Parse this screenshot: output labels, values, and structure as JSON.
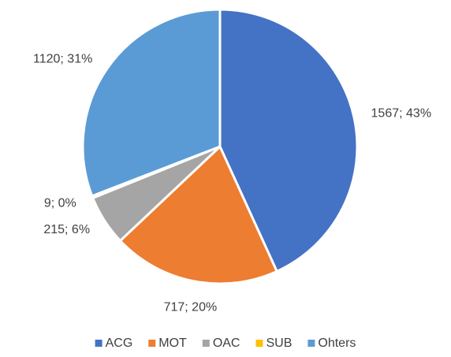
{
  "chart_data": {
    "type": "pie",
    "categories": [
      "ACG",
      "MOT",
      "OAC",
      "SUB",
      "Ohters"
    ],
    "values": [
      1567,
      717,
      215,
      9,
      1120
    ],
    "value_labels": [
      "1567; 43%",
      "717; 20%",
      "215; 6%",
      "9; 0%",
      "1120; 31%"
    ],
    "colors": [
      "#4472c4",
      "#ed7d31",
      "#a5a5a5",
      "#ffc000",
      "#5b9bd5"
    ],
    "legend": "bottom"
  }
}
